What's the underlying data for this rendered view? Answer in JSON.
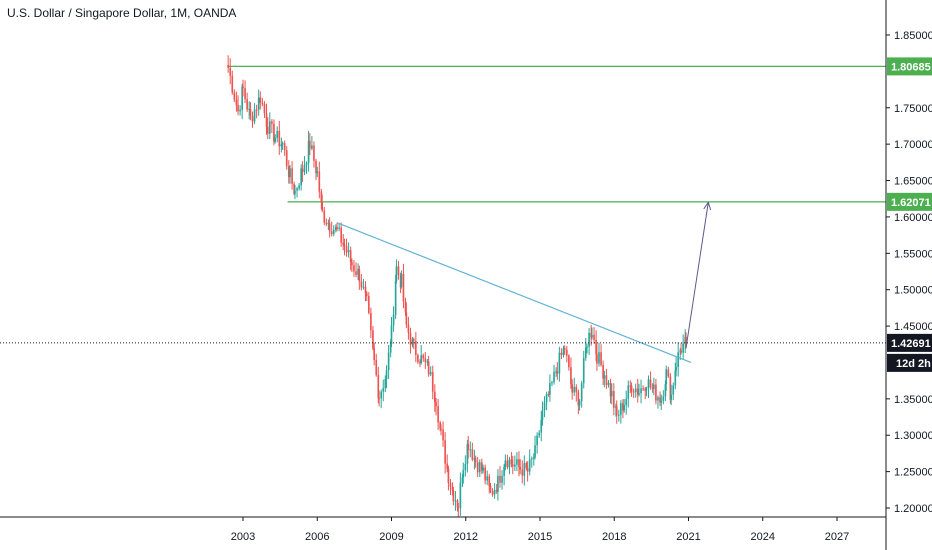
{
  "title": "U.S. Dollar / Singapore Dollar, 1M, OANDA",
  "colors": {
    "up": "#26a69a",
    "down": "#ef5350",
    "level": "#4caf50",
    "trendline": "#5fb3d4",
    "arrow": "#5b5b8c",
    "price_badge": "#131722",
    "axis": "#131722"
  },
  "chart_data": {
    "type": "candlestick",
    "title": "U.S. Dollar / Singapore Dollar, 1M, OANDA",
    "xlabel": "",
    "ylabel": "",
    "x_range": [
      2000.0,
      2028.5
    ],
    "y_range": [
      1.19,
      1.9
    ],
    "x_ticks": [
      "2003",
      "2006",
      "2009",
      "2012",
      "2015",
      "2018",
      "2021",
      "2024",
      "2027"
    ],
    "y_ticks": [
      "1.85000",
      "1.75000",
      "1.70000",
      "1.65000",
      "1.60000",
      "1.55000",
      "1.50000",
      "1.45000",
      "1.35000",
      "1.30000",
      "1.25000",
      "1.20000"
    ],
    "horizontal_levels": [
      {
        "value": 1.80685,
        "label": "1.80685",
        "from_year": 2002.4
      },
      {
        "value": 1.62071,
        "label": "1.62071",
        "from_year": 2004.8
      }
    ],
    "current_price": {
      "value": 1.42691,
      "label": "1.42691",
      "countdown": "12d 2h"
    },
    "trendline": {
      "start": [
        2006.8,
        1.592
      ],
      "end": [
        2021.1,
        1.4
      ]
    },
    "projection_arrow": {
      "start": [
        2020.9,
        1.42
      ],
      "end": [
        2021.8,
        1.62
      ]
    },
    "price_path": [
      [
        2002.4,
        1.805
      ],
      [
        2002.8,
        1.745
      ],
      [
        2003.0,
        1.775
      ],
      [
        2003.3,
        1.735
      ],
      [
        2003.7,
        1.765
      ],
      [
        2004.0,
        1.725
      ],
      [
        2004.3,
        1.71
      ],
      [
        2004.6,
        1.7
      ],
      [
        2004.9,
        1.655
      ],
      [
        2005.1,
        1.635
      ],
      [
        2005.4,
        1.665
      ],
      [
        2005.7,
        1.7
      ],
      [
        2006.0,
        1.66
      ],
      [
        2006.2,
        1.605
      ],
      [
        2006.5,
        1.59
      ],
      [
        2006.8,
        1.58
      ],
      [
        2007.1,
        1.56
      ],
      [
        2007.4,
        1.535
      ],
      [
        2007.7,
        1.52
      ],
      [
        2008.0,
        1.48
      ],
      [
        2008.3,
        1.4
      ],
      [
        2008.5,
        1.355
      ],
      [
        2008.8,
        1.385
      ],
      [
        2009.0,
        1.44
      ],
      [
        2009.2,
        1.53
      ],
      [
        2009.4,
        1.51
      ],
      [
        2009.6,
        1.45
      ],
      [
        2009.9,
        1.42
      ],
      [
        2010.2,
        1.405
      ],
      [
        2010.5,
        1.39
      ],
      [
        2010.8,
        1.35
      ],
      [
        2011.0,
        1.3
      ],
      [
        2011.3,
        1.245
      ],
      [
        2011.5,
        1.22
      ],
      [
        2011.7,
        1.205
      ],
      [
        2011.9,
        1.26
      ],
      [
        2012.1,
        1.29
      ],
      [
        2012.4,
        1.265
      ],
      [
        2012.7,
        1.25
      ],
      [
        2013.0,
        1.22
      ],
      [
        2013.3,
        1.235
      ],
      [
        2013.6,
        1.27
      ],
      [
        2013.9,
        1.26
      ],
      [
        2014.2,
        1.255
      ],
      [
        2014.5,
        1.25
      ],
      [
        2014.8,
        1.275
      ],
      [
        2015.1,
        1.33
      ],
      [
        2015.4,
        1.36
      ],
      [
        2015.7,
        1.395
      ],
      [
        2016.0,
        1.42
      ],
      [
        2016.3,
        1.36
      ],
      [
        2016.6,
        1.35
      ],
      [
        2016.9,
        1.43
      ],
      [
        2017.1,
        1.445
      ],
      [
        2017.3,
        1.41
      ],
      [
        2017.6,
        1.385
      ],
      [
        2017.9,
        1.355
      ],
      [
        2018.1,
        1.325
      ],
      [
        2018.4,
        1.345
      ],
      [
        2018.7,
        1.37
      ],
      [
        2019.0,
        1.36
      ],
      [
        2019.3,
        1.375
      ],
      [
        2019.6,
        1.36
      ],
      [
        2019.9,
        1.35
      ],
      [
        2020.1,
        1.385
      ],
      [
        2020.3,
        1.355
      ],
      [
        2020.5,
        1.4
      ],
      [
        2020.7,
        1.42
      ],
      [
        2020.9,
        1.427
      ]
    ]
  }
}
